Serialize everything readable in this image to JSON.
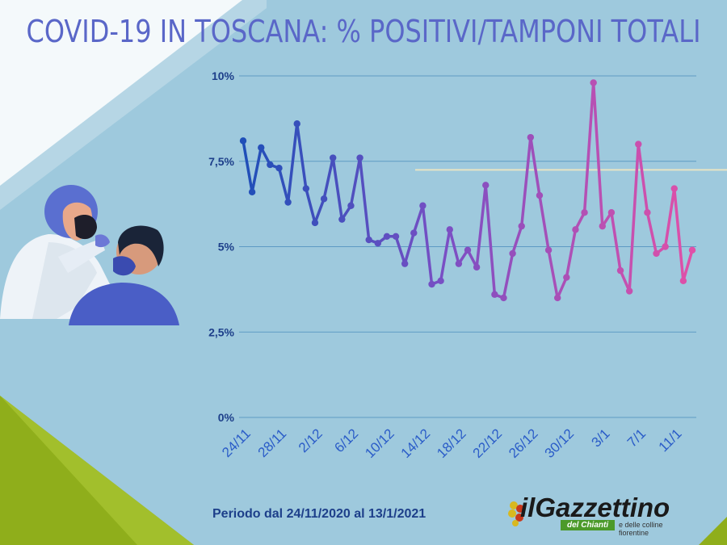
{
  "title": "COVID-19 IN TOSCANA: % POSITIVI/TAMPONI TOTALI",
  "footer": {
    "period": "Periodo dal 24/11/2020 al 13/1/2021",
    "logo_main": "ilGazzettino",
    "logo_sub": "del Chianti",
    "logo_tag": "e delle colline fiorentine"
  },
  "colors": {
    "background": "#9ec9dd",
    "title": "#5a67c8",
    "line_start": "#1f4fb8",
    "line_mid": "#7a4fc4",
    "line_end": "#e050a8",
    "grid": "#4f8fbf",
    "reference_line": "#e8e4c4"
  },
  "chart_data": {
    "type": "line",
    "title": "COVID-19 IN TOSCANA: % POSITIVI/TAMPONI TOTALI",
    "xlabel": "",
    "ylabel": "",
    "ylim": [
      0,
      10
    ],
    "yticks": [
      0,
      2.5,
      5,
      7.5,
      10
    ],
    "ytick_labels": [
      "0%",
      "2,5%",
      "5%",
      "7,5%",
      "10%"
    ],
    "x_tick_labels": [
      "24/11",
      "28/11",
      "2/12",
      "6/12",
      "10/12",
      "14/12",
      "18/12",
      "22/12",
      "26/12",
      "30/12",
      "3/1",
      "7/1",
      "11/1"
    ],
    "grid": true,
    "reference_line_y": 7.25,
    "x": [
      "24/11",
      "25/11",
      "26/11",
      "27/11",
      "28/11",
      "29/11",
      "30/11",
      "1/12",
      "2/12",
      "3/12",
      "4/12",
      "5/12",
      "6/12",
      "7/12",
      "8/12",
      "9/12",
      "10/12",
      "11/12",
      "12/12",
      "13/12",
      "14/12",
      "15/12",
      "16/12",
      "17/12",
      "18/12",
      "19/12",
      "20/12",
      "21/12",
      "22/12",
      "23/12",
      "24/12",
      "25/12",
      "26/12",
      "27/12",
      "28/12",
      "29/12",
      "30/12",
      "31/12",
      "1/1",
      "2/1",
      "3/1",
      "4/1",
      "5/1",
      "6/1",
      "7/1",
      "8/1",
      "9/1",
      "10/1",
      "11/1",
      "12/1",
      "13/1"
    ],
    "series": [
      {
        "values": [
          8.1,
          6.6,
          7.9,
          7.4,
          7.3,
          6.3,
          8.6,
          6.7,
          5.7,
          6.4,
          7.6,
          5.8,
          6.2,
          7.6,
          5.2,
          5.1,
          5.3,
          5.3,
          4.5,
          5.4,
          6.2,
          3.9,
          4.0,
          5.5,
          4.5,
          4.9,
          4.4,
          6.8,
          3.6,
          3.5,
          4.8,
          5.6,
          8.2,
          6.5,
          4.9,
          3.5,
          4.1,
          5.5,
          6.0,
          9.8,
          5.6,
          6.0,
          4.3,
          3.7,
          8.0,
          6.0,
          4.8,
          5.0,
          6.7,
          4.0,
          4.9
        ]
      }
    ]
  }
}
